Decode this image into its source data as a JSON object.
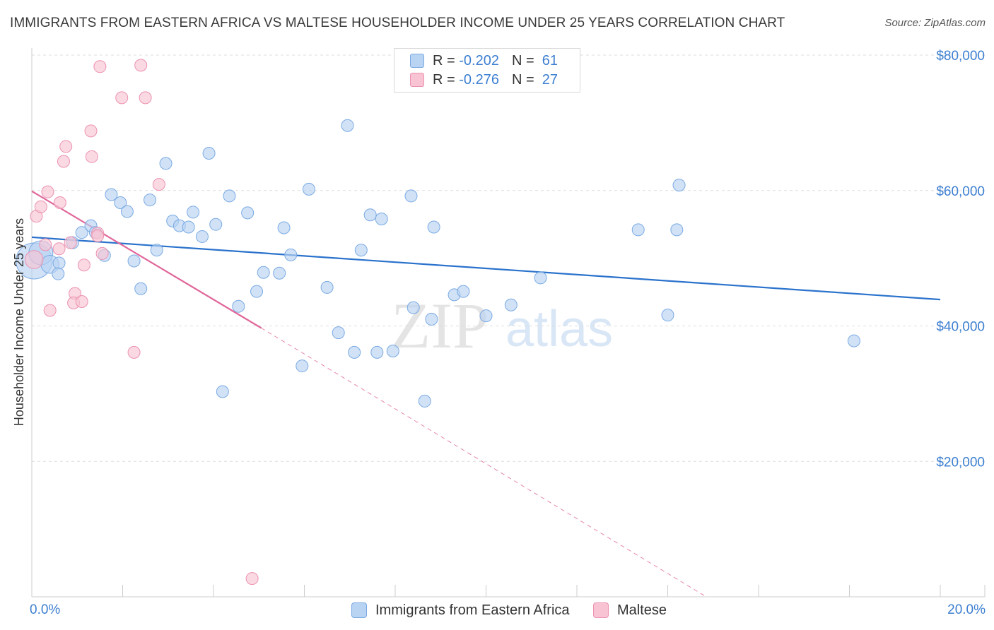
{
  "title": "IMMIGRANTS FROM EASTERN AFRICA VS MALTESE HOUSEHOLDER INCOME UNDER 25 YEARS CORRELATION CHART",
  "source": "Source: ZipAtlas.com",
  "watermark": {
    "zip": "ZIP",
    "atlas": "atlas"
  },
  "colors": {
    "blue_fill": "#b9d3f3",
    "blue_stroke": "#7aaae3",
    "blue_line": "#2a72cc",
    "pink_fill": "#f8c4d4",
    "pink_stroke": "#ec92b0",
    "pink_line": "#e0679a",
    "accent_text": "#3d7fd0",
    "grid": "#dddddd"
  },
  "legend": {
    "r_label": "R =",
    "n_label": "N =",
    "rows": [
      {
        "r": "-0.202",
        "n": "61"
      },
      {
        "r": "-0.276",
        "n": "27"
      }
    ]
  },
  "bottom_legend": [
    "Immigrants from Eastern Africa",
    "Maltese"
  ],
  "chart_data": {
    "type": "scatter",
    "title": "IMMIGRANTS FROM EASTERN AFRICA VS MALTESE HOUSEHOLDER INCOME UNDER 25 YEARS CORRELATION CHART",
    "xlabel": "",
    "ylabel": "Householder Income Under 25 years",
    "xlim": [
      0,
      20
    ],
    "ylim": [
      0,
      82000
    ],
    "x_tick_labels": [
      "0.0%",
      "20.0%"
    ],
    "y_ticks": [
      {
        "value": 80000,
        "label": "$80,000"
      },
      {
        "value": 60000,
        "label": "$60,000"
      },
      {
        "value": 40000,
        "label": "$40,000"
      },
      {
        "value": 20000,
        "label": "$20,000"
      }
    ],
    "grid": true,
    "series": [
      {
        "name": "Immigrants from Eastern Africa",
        "color": "#b9d3f3",
        "trend": {
          "x": [
            0,
            20
          ],
          "y": [
            53100,
            43900
          ],
          "dashed_to": null
        },
        "points": [
          [
            0.05,
            49600,
            3
          ],
          [
            0.2,
            50800,
            2
          ],
          [
            0.4,
            49100,
            1.5
          ],
          [
            0.6,
            49300,
            1
          ],
          [
            0.58,
            47700,
            1
          ],
          [
            0.9,
            52300,
            1
          ],
          [
            1.1,
            53800,
            1
          ],
          [
            1.3,
            54800,
            1
          ],
          [
            1.4,
            53800,
            1
          ],
          [
            1.6,
            50400,
            1
          ],
          [
            1.75,
            59400,
            1
          ],
          [
            1.95,
            58200,
            1
          ],
          [
            2.1,
            56900,
            1
          ],
          [
            2.25,
            49600,
            1
          ],
          [
            2.4,
            45500,
            1
          ],
          [
            2.6,
            58600,
            1
          ],
          [
            2.75,
            51200,
            1
          ],
          [
            2.95,
            64000,
            1
          ],
          [
            3.1,
            55500,
            1
          ],
          [
            3.25,
            54800,
            1
          ],
          [
            3.45,
            54600,
            1
          ],
          [
            3.55,
            56800,
            1
          ],
          [
            3.75,
            53200,
            1
          ],
          [
            3.9,
            65500,
            1
          ],
          [
            4.05,
            55000,
            1
          ],
          [
            4.2,
            30300,
            1
          ],
          [
            4.35,
            59200,
            1
          ],
          [
            4.55,
            42900,
            1
          ],
          [
            4.75,
            56700,
            1
          ],
          [
            4.95,
            45100,
            1
          ],
          [
            5.1,
            47900,
            1
          ],
          [
            5.45,
            47800,
            1
          ],
          [
            5.55,
            54500,
            1
          ],
          [
            5.7,
            50500,
            1
          ],
          [
            5.95,
            34100,
            1
          ],
          [
            6.1,
            60200,
            1
          ],
          [
            6.5,
            45700,
            1
          ],
          [
            6.75,
            39000,
            1
          ],
          [
            6.95,
            69600,
            1
          ],
          [
            7.1,
            36100,
            1
          ],
          [
            7.25,
            51200,
            1
          ],
          [
            7.45,
            56400,
            1
          ],
          [
            7.6,
            36100,
            1
          ],
          [
            7.7,
            55800,
            1
          ],
          [
            7.95,
            36300,
            1
          ],
          [
            8.35,
            59200,
            1
          ],
          [
            8.4,
            42700,
            1
          ],
          [
            8.65,
            28900,
            1
          ],
          [
            8.8,
            41000,
            1
          ],
          [
            8.85,
            54600,
            1
          ],
          [
            9.3,
            44600,
            1
          ],
          [
            9.5,
            45100,
            1
          ],
          [
            10.0,
            41500,
            1
          ],
          [
            10.55,
            43100,
            1
          ],
          [
            11.2,
            47100,
            1
          ],
          [
            13.35,
            54200,
            1
          ],
          [
            14.0,
            41600,
            1
          ],
          [
            14.2,
            54200,
            1
          ],
          [
            14.25,
            60800,
            1
          ],
          [
            18.1,
            37800,
            1
          ],
          [
            9.9,
            76000,
            1
          ]
        ]
      },
      {
        "name": "Maltese",
        "color": "#f8c4d4",
        "trend": {
          "x": [
            0,
            5.05
          ],
          "y": [
            59900,
            39700
          ],
          "dashed_to": {
            "x": 14.85,
            "y": 0
          }
        },
        "points": [
          [
            0.05,
            49800,
            1.5
          ],
          [
            0.1,
            56200,
            1
          ],
          [
            0.2,
            57600,
            1
          ],
          [
            0.3,
            52000,
            1
          ],
          [
            0.35,
            59800,
            1
          ],
          [
            0.4,
            42300,
            1
          ],
          [
            0.6,
            51400,
            1
          ],
          [
            0.62,
            58200,
            1
          ],
          [
            0.7,
            64300,
            1
          ],
          [
            0.75,
            66500,
            1
          ],
          [
            0.85,
            52300,
            1
          ],
          [
            0.95,
            44800,
            1
          ],
          [
            0.92,
            43400,
            1
          ],
          [
            1.1,
            43600,
            1
          ],
          [
            1.15,
            49000,
            1
          ],
          [
            1.3,
            68800,
            1
          ],
          [
            1.32,
            65000,
            1
          ],
          [
            1.45,
            53700,
            1
          ],
          [
            1.5,
            78300,
            1
          ],
          [
            1.55,
            50700,
            1
          ],
          [
            1.98,
            73700,
            1
          ],
          [
            2.25,
            36100,
            1
          ],
          [
            2.4,
            78500,
            1
          ],
          [
            2.5,
            73700,
            1
          ],
          [
            2.8,
            60900,
            1
          ],
          [
            4.85,
            2700,
            1
          ],
          [
            1.45,
            53300,
            1
          ]
        ]
      }
    ]
  }
}
